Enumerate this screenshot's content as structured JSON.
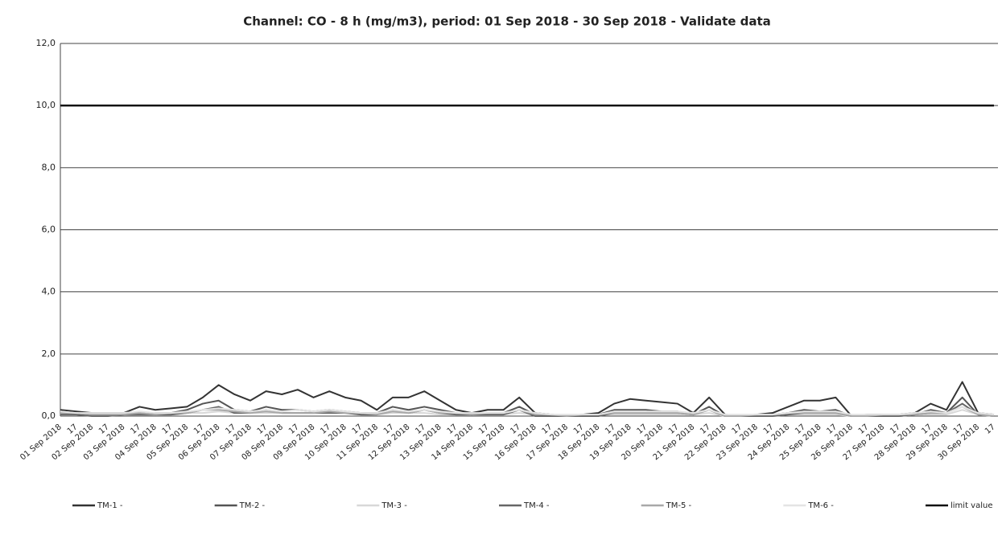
{
  "chart_data": {
    "type": "line",
    "title": "Channel: CO - 8 h (mg/m3), period: 01 Sep 2018 - 30 Sep 2018 - Validate data",
    "categories": [
      "01 Sep 2018",
      "17",
      "02 Sep 2018",
      "17",
      "03 Sep 2018",
      "17",
      "04 Sep 2018",
      "17",
      "05 Sep 2018",
      "17",
      "06 Sep 2018",
      "17",
      "07 Sep 2018",
      "17",
      "08 Sep 2018",
      "17",
      "09 Sep 2018",
      "17",
      "10 Sep 2018",
      "17",
      "11 Sep 2018",
      "17",
      "12 Sep 2018",
      "17",
      "13 Sep 2018",
      "17",
      "14 Sep 2018",
      "17",
      "15 Sep 2018",
      "17",
      "16 Sep 2018",
      "17",
      "17 Sep 2018",
      "17",
      "18 Sep 2018",
      "17",
      "19 Sep 2018",
      "17",
      "20 Sep 2018",
      "17",
      "21 Sep 2018",
      "17",
      "22 Sep 2018",
      "17",
      "23 Sep 2018",
      "17",
      "24 Sep 2018",
      "17",
      "25 Sep 2018",
      "17",
      "26 Sep 2018",
      "17",
      "27 Sep 2018",
      "17",
      "28 Sep 2018",
      "17",
      "29 Sep 2018",
      "17",
      "30 Sep 2018",
      "17"
    ],
    "series": [
      {
        "name": "TM-1 -",
        "color": "#333333",
        "values": [
          0.2,
          0.15,
          0.1,
          0.1,
          0.1,
          0.3,
          0.2,
          0.25,
          0.3,
          0.6,
          1.0,
          0.7,
          0.5,
          0.8,
          0.7,
          0.85,
          0.6,
          0.8,
          0.6,
          0.5,
          0.2,
          0.6,
          0.6,
          0.8,
          0.5,
          0.2,
          0.1,
          0.2,
          0.2,
          0.6,
          0.1,
          0.05,
          0.0,
          0.05,
          0.1,
          0.4,
          0.55,
          0.5,
          0.45,
          0.4,
          0.1,
          0.6,
          0.05,
          0.0,
          0.05,
          0.1,
          0.3,
          0.5,
          0.5,
          0.6,
          0.0,
          0.05,
          0.05,
          0.05,
          0.1,
          0.4,
          0.2,
          1.1,
          0.1,
          0.05
        ]
      },
      {
        "name": "TM-2 -",
        "color": "#555555",
        "values": [
          0.1,
          0.1,
          0.05,
          0.05,
          0.05,
          0.1,
          0.1,
          0.1,
          0.2,
          0.4,
          0.5,
          0.2,
          0.15,
          0.3,
          0.2,
          0.2,
          0.15,
          0.2,
          0.15,
          0.1,
          0.1,
          0.3,
          0.2,
          0.3,
          0.2,
          0.1,
          0.05,
          0.1,
          0.1,
          0.3,
          0.05,
          0.05,
          0.0,
          0.0,
          0.05,
          0.2,
          0.2,
          0.2,
          0.15,
          0.15,
          0.05,
          0.3,
          0.0,
          0.0,
          0.0,
          0.05,
          0.1,
          0.2,
          0.15,
          0.2,
          0.0,
          0.0,
          0.0,
          0.0,
          0.05,
          0.2,
          0.1,
          0.6,
          0.05,
          0.0
        ]
      },
      {
        "name": "TM-3 -",
        "color": "#d8d8d8",
        "values": [
          0.05,
          0.05,
          0.05,
          0.05,
          0.05,
          0.05,
          0.05,
          0.05,
          0.1,
          0.1,
          0.15,
          0.1,
          0.1,
          0.1,
          0.1,
          0.1,
          0.1,
          0.1,
          0.1,
          0.05,
          0.05,
          0.1,
          0.1,
          0.1,
          0.05,
          0.05,
          0.05,
          0.05,
          0.05,
          0.1,
          0.05,
          0.05,
          0.0,
          0.0,
          0.05,
          0.05,
          0.05,
          0.05,
          0.05,
          0.05,
          0.05,
          0.1,
          0.0,
          0.0,
          0.0,
          0.0,
          0.05,
          0.05,
          0.05,
          0.05,
          0.0,
          0.0,
          0.0,
          0.0,
          0.05,
          0.05,
          0.05,
          0.2,
          0.05,
          0.0
        ]
      },
      {
        "name": "TM-4 -",
        "color": "#666666",
        "values": [
          0.05,
          0.05,
          0.0,
          0.0,
          0.05,
          0.05,
          0.05,
          0.05,
          0.1,
          0.2,
          0.3,
          0.1,
          0.1,
          0.2,
          0.1,
          0.1,
          0.1,
          0.1,
          0.1,
          0.05,
          0.05,
          0.2,
          0.1,
          0.2,
          0.1,
          0.05,
          0.05,
          0.05,
          0.05,
          0.2,
          0.0,
          0.0,
          0.0,
          0.0,
          0.0,
          0.1,
          0.1,
          0.1,
          0.1,
          0.1,
          0.05,
          0.2,
          0.0,
          0.0,
          0.0,
          0.0,
          0.05,
          0.1,
          0.1,
          0.1,
          0.0,
          0.0,
          0.0,
          0.0,
          0.05,
          0.1,
          0.1,
          0.4,
          0.05,
          0.0
        ]
      },
      {
        "name": "TM-5 -",
        "color": "#a8a8a8",
        "values": [
          0.1,
          0.1,
          0.05,
          0.05,
          0.05,
          0.1,
          0.05,
          0.1,
          0.1,
          0.2,
          0.2,
          0.15,
          0.1,
          0.15,
          0.1,
          0.1,
          0.1,
          0.15,
          0.1,
          0.1,
          0.05,
          0.15,
          0.1,
          0.2,
          0.1,
          0.1,
          0.05,
          0.1,
          0.1,
          0.2,
          0.05,
          0.05,
          0.0,
          0.05,
          0.05,
          0.1,
          0.1,
          0.1,
          0.1,
          0.1,
          0.05,
          0.2,
          0.0,
          0.0,
          0.05,
          0.05,
          0.1,
          0.1,
          0.1,
          0.1,
          0.0,
          0.0,
          0.05,
          0.05,
          0.05,
          0.1,
          0.1,
          0.3,
          0.05,
          0.0
        ]
      },
      {
        "name": "TM-6 -",
        "color": "#e4e4e4",
        "values": [
          0.15,
          0.1,
          0.1,
          0.1,
          0.1,
          0.15,
          0.1,
          0.1,
          0.15,
          0.2,
          0.25,
          0.2,
          0.15,
          0.2,
          0.15,
          0.2,
          0.15,
          0.2,
          0.15,
          0.1,
          0.1,
          0.2,
          0.15,
          0.2,
          0.15,
          0.1,
          0.1,
          0.1,
          0.1,
          0.2,
          0.1,
          0.05,
          0.05,
          0.05,
          0.05,
          0.15,
          0.15,
          0.15,
          0.15,
          0.15,
          0.1,
          0.2,
          0.05,
          0.05,
          0.05,
          0.05,
          0.1,
          0.15,
          0.15,
          0.15,
          0.05,
          0.05,
          0.05,
          0.05,
          0.1,
          0.15,
          0.1,
          0.3,
          0.1,
          0.05
        ]
      },
      {
        "name": "limit value",
        "color": "#111111",
        "values": [
          10,
          10,
          10,
          10,
          10,
          10,
          10,
          10,
          10,
          10,
          10,
          10,
          10,
          10,
          10,
          10,
          10,
          10,
          10,
          10,
          10,
          10,
          10,
          10,
          10,
          10,
          10,
          10,
          10,
          10,
          10,
          10,
          10,
          10,
          10,
          10,
          10,
          10,
          10,
          10,
          10,
          10,
          10,
          10,
          10,
          10,
          10,
          10,
          10,
          10,
          10,
          10,
          10,
          10,
          10,
          10,
          10,
          10,
          10,
          10
        ]
      }
    ],
    "ylim": [
      0,
      12
    ],
    "yticks": [
      {
        "value": 0,
        "label": "0,0"
      },
      {
        "value": 2,
        "label": "2,0"
      },
      {
        "value": 4,
        "label": "4,0"
      },
      {
        "value": 6,
        "label": "6,0"
      },
      {
        "value": 8,
        "label": "8,0"
      },
      {
        "value": 10,
        "label": "10,0"
      },
      {
        "value": 12,
        "label": "12,0"
      }
    ],
    "grid": true,
    "legend": "bottom"
  }
}
